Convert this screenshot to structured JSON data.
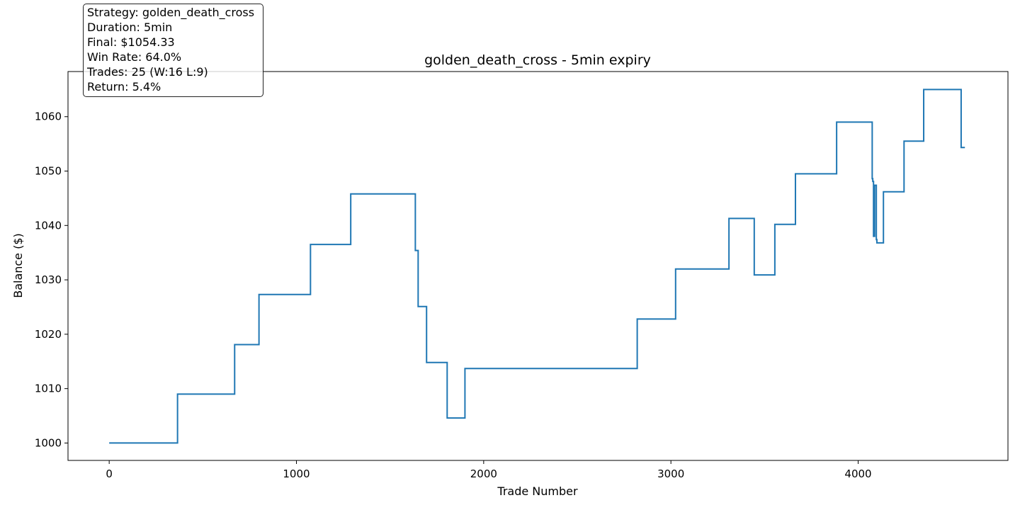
{
  "chart_data": {
    "type": "line",
    "title": "golden_death_cross - 5min expiry",
    "xlabel": "Trade Number",
    "ylabel": "Balance ($)",
    "xlim": [
      -220,
      4800
    ],
    "ylim": [
      996.8,
      1068.3
    ],
    "xticks": [
      0,
      1000,
      2000,
      3000,
      4000
    ],
    "yticks": [
      1000,
      1010,
      1020,
      1030,
      1040,
      1050,
      1060
    ],
    "grid": false,
    "series": [
      {
        "name": "Balance",
        "color": "#1f77b4",
        "step": "post",
        "x": [
          0,
          365,
          670,
          800,
          1075,
          1290,
          1635,
          1650,
          1695,
          1805,
          1900,
          2820,
          3025,
          3310,
          3445,
          3555,
          3665,
          3885,
          4075,
          4078,
          4082,
          4088,
          4097,
          4100,
          4106,
          4135,
          4245,
          4350,
          4550,
          4570
        ],
        "y": [
          1000,
          1009,
          1018.1,
          1027.3,
          1036.5,
          1045.8,
          1035.4,
          1025.1,
          1014.8,
          1004.6,
          1013.7,
          1022.8,
          1032,
          1041.3,
          1030.9,
          1040.2,
          1049.5,
          1059,
          1048.6,
          1048.1,
          1038,
          1047.4,
          1037.4,
          1036.8,
          1036.8,
          1046.2,
          1055.5,
          1065,
          1054.33,
          1054.33
        ]
      }
    ]
  },
  "info": {
    "strategy": "Strategy: golden_death_cross",
    "duration": "Duration: 5min",
    "final": "Final: $1054.33",
    "win_rate": "Win Rate: 64.0%",
    "trades": "Trades: 25 (W:16 L:9)",
    "return": "Return: 5.4%"
  }
}
